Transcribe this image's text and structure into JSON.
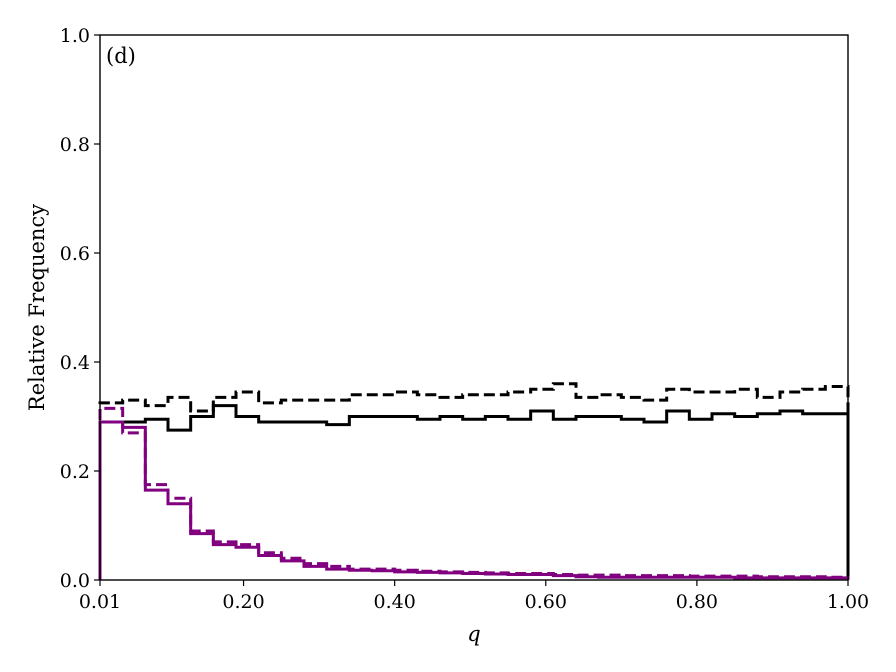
{
  "chart_data": {
    "type": "line",
    "step": true,
    "panel_label": "(d)",
    "xlabel": "q",
    "ylabel": "Relative Frequency",
    "xlim": [
      0.01,
      1.0
    ],
    "ylim": [
      0.0,
      1.0
    ],
    "x_ticks": [
      0.01,
      0.2,
      0.4,
      0.6,
      0.8,
      1.0
    ],
    "x_tick_labels": [
      "0.01",
      "0.20",
      "0.40",
      "0.60",
      "0.80",
      "1.00"
    ],
    "y_ticks": [
      0.0,
      0.2,
      0.4,
      0.6,
      0.8,
      1.0
    ],
    "y_tick_labels": [
      "0.0",
      "0.2",
      "0.4",
      "0.6",
      "0.8",
      "1.0"
    ],
    "grid": false,
    "bin_edges": [
      0.01,
      0.04,
      0.07,
      0.1,
      0.13,
      0.16,
      0.19,
      0.22,
      0.25,
      0.28,
      0.31,
      0.34,
      0.37,
      0.4,
      0.43,
      0.46,
      0.49,
      0.52,
      0.55,
      0.58,
      0.61,
      0.64,
      0.67,
      0.7,
      0.73,
      0.76,
      0.79,
      0.82,
      0.85,
      0.88,
      0.91,
      0.94,
      0.97,
      1.0
    ],
    "series": [
      {
        "color": "#000000",
        "dash": "dashed",
        "values": [
          0.325,
          0.33,
          0.32,
          0.335,
          0.31,
          0.335,
          0.345,
          0.325,
          0.33,
          0.33,
          0.33,
          0.34,
          0.34,
          0.345,
          0.34,
          0.335,
          0.34,
          0.34,
          0.345,
          0.35,
          0.36,
          0.335,
          0.34,
          0.335,
          0.33,
          0.35,
          0.345,
          0.345,
          0.35,
          0.335,
          0.345,
          0.35,
          0.355
        ]
      },
      {
        "color": "#000000",
        "dash": "solid",
        "values": [
          0.29,
          0.29,
          0.295,
          0.275,
          0.3,
          0.32,
          0.3,
          0.29,
          0.29,
          0.29,
          0.285,
          0.3,
          0.3,
          0.3,
          0.295,
          0.3,
          0.295,
          0.3,
          0.295,
          0.31,
          0.295,
          0.3,
          0.3,
          0.295,
          0.29,
          0.31,
          0.295,
          0.305,
          0.3,
          0.305,
          0.31,
          0.305,
          0.305
        ]
      },
      {
        "color": "#800080",
        "dash": "dashed",
        "values": [
          0.315,
          0.27,
          0.175,
          0.15,
          0.09,
          0.07,
          0.065,
          0.05,
          0.04,
          0.03,
          0.025,
          0.02,
          0.02,
          0.018,
          0.016,
          0.015,
          0.014,
          0.013,
          0.012,
          0.012,
          0.01,
          0.009,
          0.009,
          0.008,
          0.008,
          0.008,
          0.007,
          0.007,
          0.007,
          0.006,
          0.006,
          0.006,
          0.005
        ]
      },
      {
        "color": "#800080",
        "dash": "solid",
        "values": [
          0.29,
          0.28,
          0.165,
          0.14,
          0.085,
          0.065,
          0.06,
          0.045,
          0.035,
          0.025,
          0.02,
          0.018,
          0.017,
          0.015,
          0.014,
          0.013,
          0.012,
          0.011,
          0.01,
          0.01,
          0.008,
          0.006,
          0.005,
          0.005,
          0.005,
          0.005,
          0.005,
          0.005,
          0.004,
          0.004,
          0.004,
          0.004,
          0.004
        ]
      }
    ]
  }
}
